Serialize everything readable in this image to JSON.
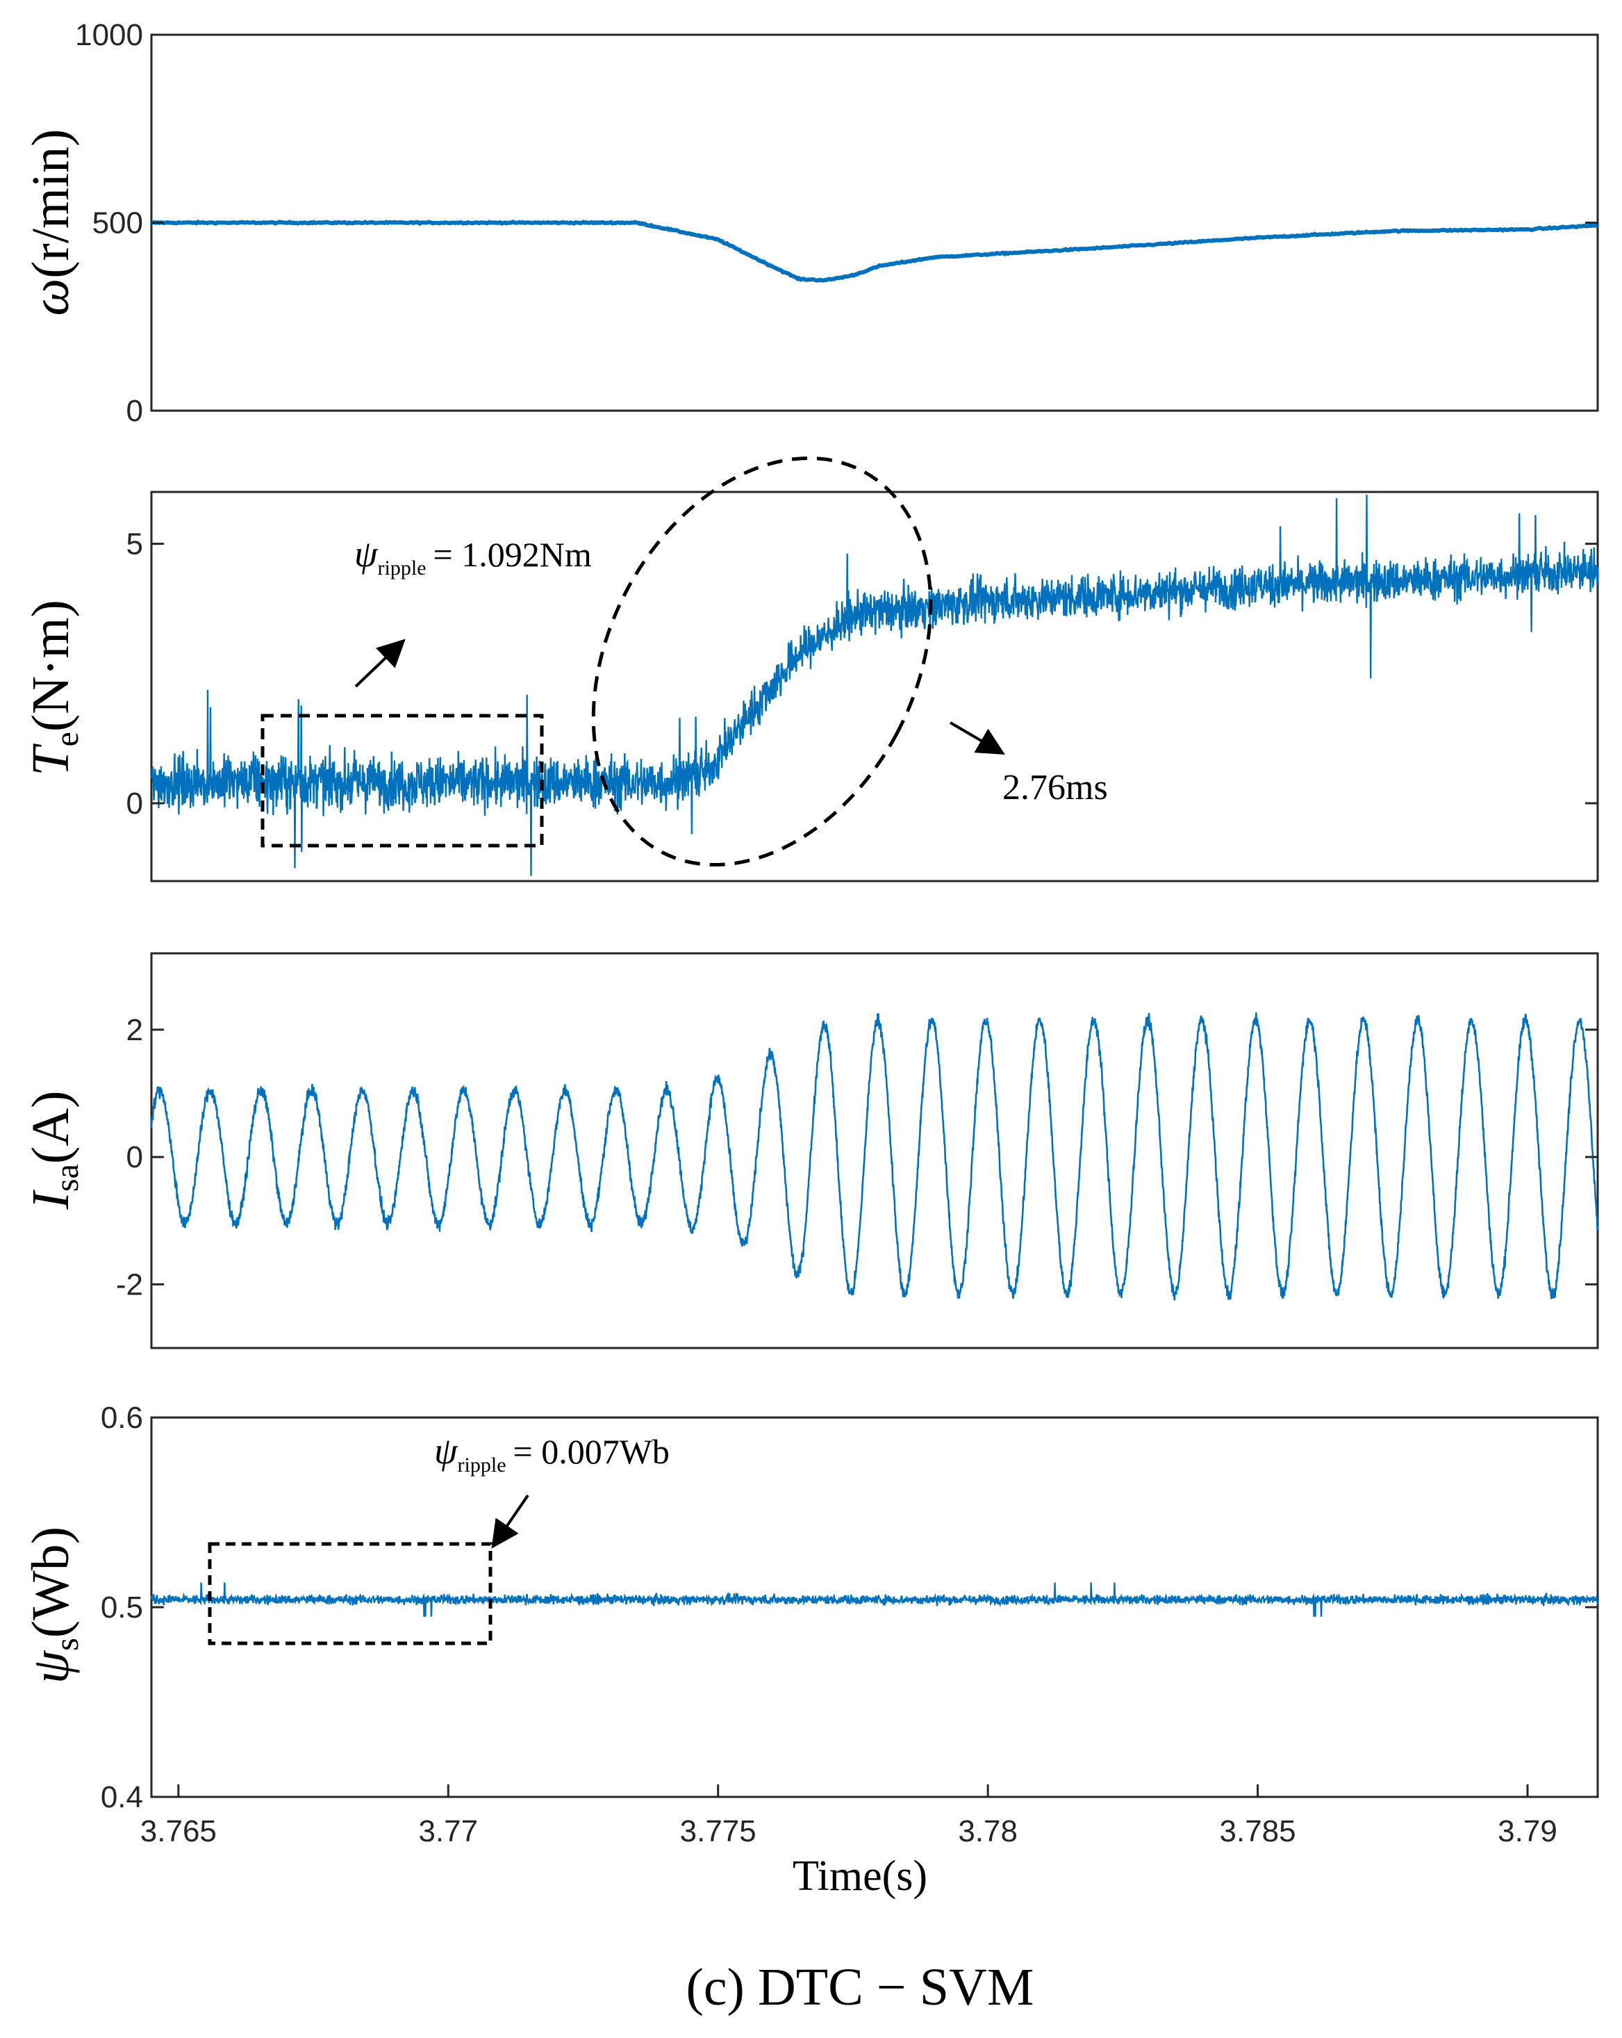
{
  "caption": "(c) DTC − SVM",
  "colors": {
    "trace": "#0072BD",
    "axis": "#262626",
    "annotation": "#000000"
  },
  "chart_data": [
    {
      "type": "line",
      "name": "speed",
      "ylabel": {
        "symbol": "ω",
        "unit": "(r/min)"
      },
      "ylim": [
        0,
        1000
      ],
      "yticks": [
        0,
        500,
        1000
      ],
      "ytick_labels": [
        "0",
        "500",
        "1000"
      ],
      "xlim": [
        3.7645,
        3.7913
      ],
      "series": [
        {
          "name": "ω",
          "x": [
            3.7645,
            3.768,
            3.772,
            3.7735,
            3.775,
            3.7758,
            3.7765,
            3.777,
            3.7775,
            3.778,
            3.779,
            3.782,
            3.785,
            3.7875,
            3.79,
            3.7913
          ],
          "y": [
            500,
            500,
            500,
            500,
            455,
            398,
            350,
            347,
            360,
            385,
            408,
            432,
            460,
            478,
            482,
            493
          ]
        }
      ]
    },
    {
      "type": "line",
      "name": "torque",
      "ylabel": {
        "symbol": "T",
        "sub": "e",
        "unit": "(N·m)"
      },
      "ylim": [
        -1.5,
        6
      ],
      "yticks": [
        0,
        5
      ],
      "ytick_labels": [
        "0",
        "5"
      ],
      "xlim": [
        3.7645,
        3.7913
      ],
      "series": [
        {
          "name": "Te",
          "x": [
            3.7645,
            3.774,
            3.7748,
            3.7755,
            3.7765,
            3.7775,
            3.778,
            3.78,
            3.782,
            3.785,
            3.788,
            3.7913
          ],
          "y": [
            0.4,
            0.4,
            0.6,
            1.6,
            2.9,
            3.6,
            3.7,
            3.9,
            4.0,
            4.2,
            4.3,
            4.5
          ]
        }
      ],
      "annotations": [
        {
          "symbol": "ψ",
          "sub": "ripple",
          "text": "= 1.092Nm"
        },
        {
          "text": "2.76ms"
        }
      ]
    },
    {
      "type": "line",
      "name": "phase current",
      "ylabel": {
        "symbol": "I",
        "sub": "sa",
        "unit": "(A)"
      },
      "ylim": [
        -3,
        3.2
      ],
      "yticks": [
        -2,
        0,
        2
      ],
      "ytick_labels": [
        "-2",
        "0",
        "2"
      ],
      "xlim": [
        3.7645,
        3.7913
      ],
      "series": [
        {
          "name": "Isa",
          "amplitude_before": 1.05,
          "amplitude_after": 2.15,
          "cycles_before": 11.5,
          "cycles_after": 16,
          "transition_x": 3.7753
        }
      ]
    },
    {
      "type": "line",
      "name": "stator flux",
      "ylabel": {
        "symbol": "ψ",
        "sub": "s",
        "unit": "(Wb)"
      },
      "ylim": [
        0.4,
        0.6
      ],
      "yticks": [
        0.4,
        0.5,
        0.6
      ],
      "ytick_labels": [
        "0.4",
        "0.5",
        "0.6"
      ],
      "xlim": [
        3.7645,
        3.7913
      ],
      "xticks": [
        3.765,
        3.77,
        3.775,
        3.78,
        3.785,
        3.79
      ],
      "xtick_labels": [
        "3.765",
        "3.77",
        "3.775",
        "3.78",
        "3.785",
        "3.79"
      ],
      "xlabel": "Time(s)",
      "series": [
        {
          "name": "ψs",
          "mean": 0.504
        }
      ],
      "annotations": [
        {
          "symbol": "ψ",
          "sub": "ripple",
          "text": "= 0.007Wb"
        }
      ]
    }
  ]
}
